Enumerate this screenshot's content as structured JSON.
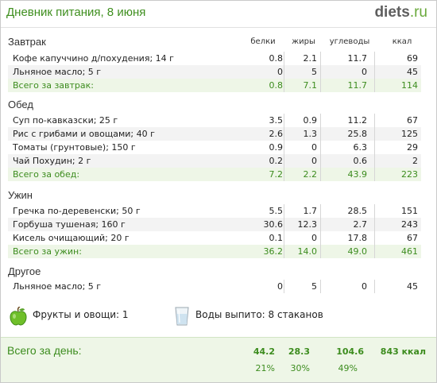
{
  "header": {
    "title": "Дневник питания, 8 июня",
    "logo_main": "diets",
    "logo_suffix": ".ru"
  },
  "columns": {
    "protein": "белки",
    "fat": "жиры",
    "carbs": "углеводы",
    "kcal": "ккал"
  },
  "meals": [
    {
      "name": "Завтрак",
      "items": [
        {
          "name": "Кофе капуччино д/похудения; 14 г",
          "protein": "0.8",
          "fat": "2.1",
          "carbs": "11.7",
          "kcal": "69"
        },
        {
          "name": "Льняное масло; 5 г",
          "protein": "0",
          "fat": "5",
          "carbs": "0",
          "kcal": "45"
        }
      ],
      "total": {
        "name": "Всего за завтрак:",
        "protein": "0.8",
        "fat": "7.1",
        "carbs": "11.7",
        "kcal": "114"
      }
    },
    {
      "name": "Обед",
      "items": [
        {
          "name": "Суп по-кавказски; 25 г",
          "protein": "3.5",
          "fat": "0.9",
          "carbs": "11.2",
          "kcal": "67"
        },
        {
          "name": "Рис с грибами и овощами; 40 г",
          "protein": "2.6",
          "fat": "1.3",
          "carbs": "25.8",
          "kcal": "125"
        },
        {
          "name": "Томаты (грунтовые); 150 г",
          "protein": "0.9",
          "fat": "0",
          "carbs": "6.3",
          "kcal": "29"
        },
        {
          "name": "Чай Похудин; 2 г",
          "protein": "0.2",
          "fat": "0",
          "carbs": "0.6",
          "kcal": "2"
        }
      ],
      "total": {
        "name": "Всего за обед:",
        "protein": "7.2",
        "fat": "2.2",
        "carbs": "43.9",
        "kcal": "223"
      }
    },
    {
      "name": "Ужин",
      "items": [
        {
          "name": "Гречка по-деревенски; 50 г",
          "protein": "5.5",
          "fat": "1.7",
          "carbs": "28.5",
          "kcal": "151"
        },
        {
          "name": "Горбуша тушеная; 160 г",
          "protein": "30.6",
          "fat": "12.3",
          "carbs": "2.7",
          "kcal": "243"
        },
        {
          "name": "Кисель очищающий; 20 г",
          "protein": "0.1",
          "fat": "0",
          "carbs": "17.8",
          "kcal": "67"
        }
      ],
      "total": {
        "name": "Всего за ужин:",
        "protein": "36.2",
        "fat": "14.0",
        "carbs": "49.0",
        "kcal": "461"
      }
    },
    {
      "name": "Другое",
      "items": [
        {
          "name": "Льняное масло; 5 г",
          "protein": "0",
          "fat": "5",
          "carbs": "0",
          "kcal": "45"
        }
      ]
    }
  ],
  "extras": {
    "fruits_label": "Фрукты и овощи: 1",
    "water_label": "Воды выпито: 8 стаканов"
  },
  "day_total": {
    "label": "Всего за день:",
    "protein": "44.2",
    "fat": "28.3",
    "carbs": "104.6",
    "kcal": "843 ккал",
    "protein_pct": "21%",
    "fat_pct": "30%",
    "carbs_pct": "49%"
  },
  "colors": {
    "accent_green": "#3c8c1e",
    "total_row_bg": "#eef6e7",
    "alt_row_bg": "#f3f3f3"
  }
}
